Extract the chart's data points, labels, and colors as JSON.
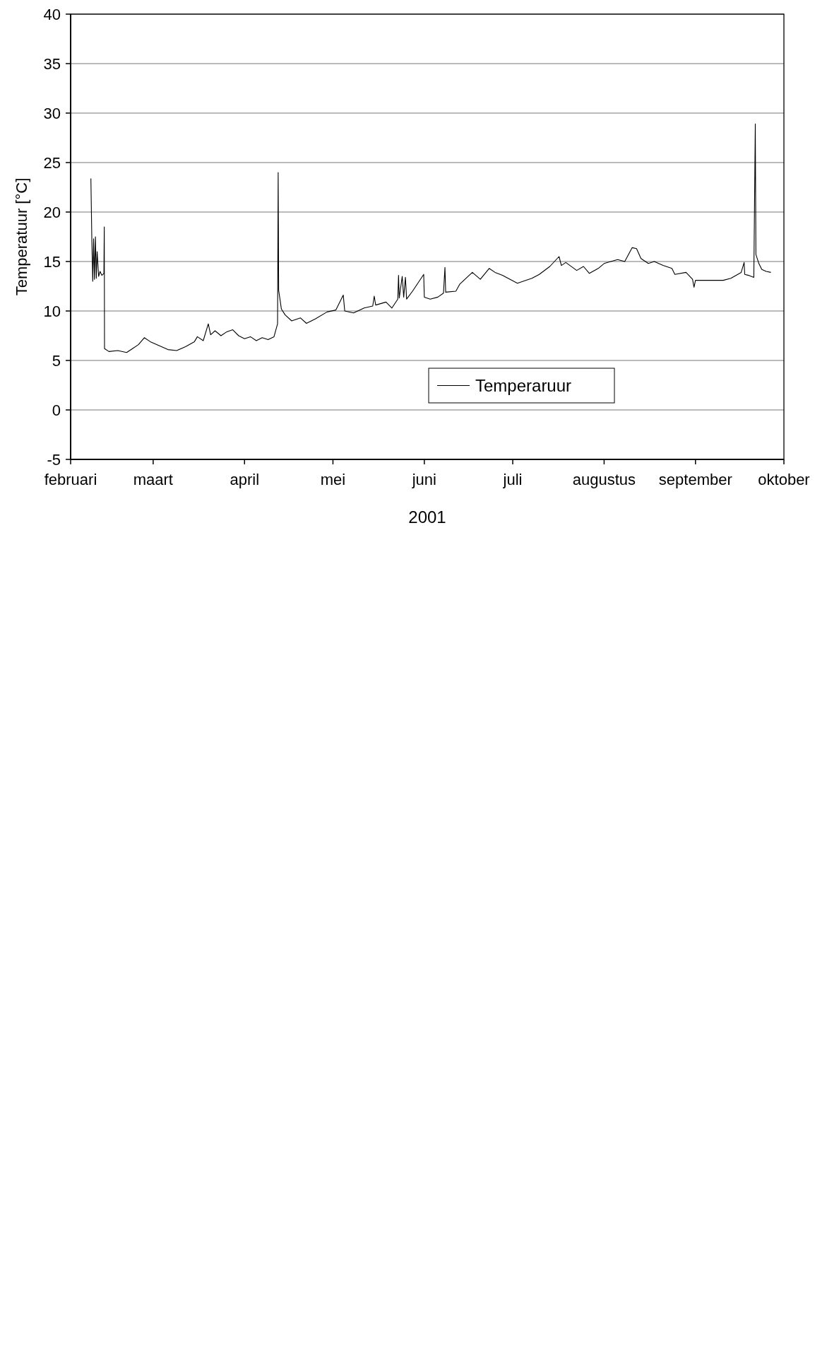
{
  "chart_data": {
    "type": "line",
    "xlabel": "2001",
    "ylabel": "Temperatuur [°C]",
    "xlim": [
      "2001-02-01",
      "2001-10-01"
    ],
    "xticks": [
      {
        "value": "2001-02-01",
        "label": "februari"
      },
      {
        "value": "2001-03-01",
        "label": "maart"
      },
      {
        "value": "2001-04-01",
        "label": "april"
      },
      {
        "value": "2001-05-01",
        "label": "mei"
      },
      {
        "value": "2001-06-01",
        "label": "juni"
      },
      {
        "value": "2001-07-01",
        "label": "juli"
      },
      {
        "value": "2001-08-01",
        "label": "augustus"
      },
      {
        "value": "2001-09-01",
        "label": "september"
      },
      {
        "value": "2001-10-01",
        "label": "oktober"
      }
    ],
    "ylim": [
      -5,
      40
    ],
    "yticks": [
      -5,
      0,
      5,
      10,
      15,
      20,
      25,
      30,
      35,
      40
    ],
    "grid": "y",
    "legend": "bottom right",
    "x": [
      "2001-02-07T21:00",
      "2001-02-08T05:00",
      "2001-02-08T12:00",
      "2001-02-08T19:00",
      "2001-02-09T02:00",
      "2001-02-09T10:00",
      "2001-02-09T17:00",
      "2001-02-10T00:00",
      "2001-02-10T12:00",
      "2001-02-11T00:00",
      "2001-02-11T14:00",
      "2001-02-12T07:00",
      "2001-02-12T10:00",
      "2001-02-12T12:00",
      "2001-02-14",
      "2001-02-17",
      "2001-02-20",
      "2001-02-22",
      "2001-02-24",
      "2001-02-26",
      "2001-02-28",
      "2001-03-03",
      "2001-03-06",
      "2001-03-09",
      "2001-03-12",
      "2001-03-15",
      "2001-03-16",
      "2001-03-18",
      "2001-03-19T17:00",
      "2001-03-20T12:00",
      "2001-03-22",
      "2001-03-24",
      "2001-03-26",
      "2001-03-28",
      "2001-03-30",
      "2001-04-01",
      "2001-04-03",
      "2001-04-05",
      "2001-04-07",
      "2001-04-09",
      "2001-04-11",
      "2001-04-12T05:00",
      "2001-04-12T10:00",
      "2001-04-12T14:00",
      "2001-04-13T12:00",
      "2001-04-14T19:00",
      "2001-04-17",
      "2001-04-20",
      "2001-04-22",
      "2001-04-25",
      "2001-04-29",
      "2001-05-02",
      "2001-05-04T12:00",
      "2001-05-05",
      "2001-05-08",
      "2001-05-11T14:00",
      "2001-05-14T12:00",
      "2001-05-15T00:00",
      "2001-05-15T12:00",
      "2001-05-19",
      "2001-05-21",
      "2001-05-23T00:00",
      "2001-05-23T06:00",
      "2001-05-23T12:00",
      "2001-05-24T12:00",
      "2001-05-25T00:00",
      "2001-05-25T14:00",
      "2001-05-26T00:00",
      "2001-05-28",
      "2001-05-31T19:00",
      "2001-06-01T00:00",
      "2001-06-03",
      "2001-06-05T14:00",
      "2001-06-07T12:00",
      "2001-06-08T00:00",
      "2001-06-08T06:00",
      "2001-06-11T17:00",
      "2001-06-13",
      "2001-06-17T07:00",
      "2001-06-20",
      "2001-06-23",
      "2001-06-25",
      "2001-06-27T12:00",
      "2001-07-02T14:00",
      "2001-07-07T12:00",
      "2001-07-10",
      "2001-07-13T14:00",
      "2001-07-16T17:00",
      "2001-07-17T12:00",
      "2001-07-19",
      "2001-07-22T17:00",
      "2001-07-25",
      "2001-07-27",
      "2001-07-30",
      "2001-08-01",
      "2001-08-05T14:00",
      "2001-08-08",
      "2001-08-10T12:00",
      "2001-08-12",
      "2001-08-13T12:00",
      "2001-08-16",
      "2001-08-18",
      "2001-08-21",
      "2001-08-24",
      "2001-08-25",
      "2001-08-28T19:00",
      "2001-08-31T00:00",
      "2001-08-31T12:00",
      "2001-09-01",
      "2001-09-05T07:00",
      "2001-09-10T10:00",
      "2001-09-13",
      "2001-09-16T12:00",
      "2001-09-17T12:00",
      "2001-09-17T17:00",
      "2001-09-19",
      "2001-09-20T19:00",
      "2001-09-21T07:00",
      "2001-09-21T12:00",
      "2001-09-22T12:00",
      "2001-09-23T12:00",
      "2001-09-25",
      "2001-09-26T14:00"
    ],
    "series": [
      {
        "name": "Temperaruur",
        "color": "#000000",
        "values": [
          23.4,
          17.0,
          13.0,
          17.3,
          13.2,
          17.5,
          13.3,
          16.0,
          13.5,
          14.0,
          13.6,
          13.8,
          18.5,
          6.2,
          5.9,
          6.0,
          5.8,
          6.2,
          6.6,
          7.3,
          6.9,
          6.5,
          6.1,
          6.0,
          6.4,
          6.9,
          7.4,
          7.0,
          8.7,
          7.6,
          8.0,
          7.5,
          7.9,
          8.1,
          7.5,
          7.2,
          7.4,
          7.0,
          7.3,
          7.1,
          7.4,
          8.7,
          24.0,
          12.1,
          10.2,
          9.6,
          9.0,
          9.3,
          8.75,
          9.2,
          9.9,
          10.1,
          11.6,
          10.0,
          9.8,
          10.3,
          10.5,
          11.5,
          10.6,
          10.9,
          10.3,
          11.2,
          13.6,
          11.3,
          13.5,
          11.4,
          13.4,
          11.2,
          12.0,
          13.7,
          11.4,
          11.2,
          11.4,
          11.8,
          14.4,
          11.9,
          12.0,
          12.7,
          13.9,
          13.2,
          14.3,
          13.9,
          13.6,
          12.8,
          13.3,
          13.7,
          14.5,
          15.5,
          14.6,
          14.9,
          14.1,
          14.5,
          13.8,
          14.3,
          14.8,
          15.2,
          15.0,
          16.4,
          16.3,
          15.3,
          14.8,
          15.0,
          14.6,
          14.3,
          13.7,
          13.9,
          13.2,
          12.4,
          13.1,
          13.1,
          13.1,
          13.3,
          13.9,
          14.9,
          13.7,
          13.6,
          13.4,
          28.9,
          15.7,
          14.8,
          14.2,
          14.0,
          13.9
        ]
      }
    ]
  }
}
